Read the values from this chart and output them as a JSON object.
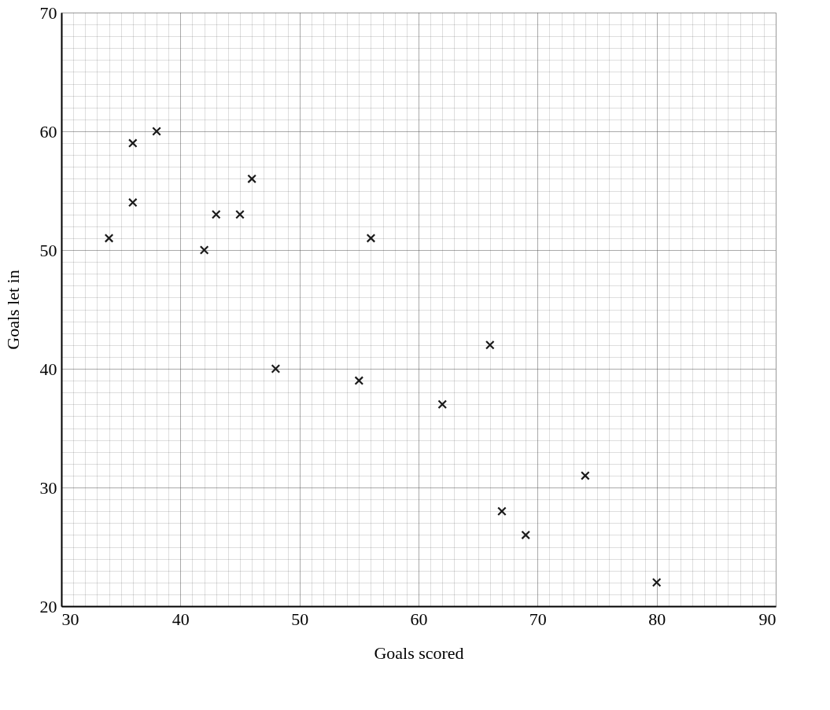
{
  "chart_data": {
    "type": "scatter",
    "xlabel": "Goals scored",
    "ylabel": "Goals let in",
    "x": [
      34,
      36,
      36,
      38,
      42,
      43,
      45,
      46,
      48,
      55,
      56,
      62,
      66,
      67,
      69,
      74,
      80
    ],
    "series": [
      {
        "color": "#1a1a1a",
        "values": [
          51,
          59,
          54,
          60,
          50,
          53,
          53,
          56,
          40,
          39,
          51,
          37,
          42,
          28,
          26,
          31,
          22
        ]
      }
    ],
    "xlim": [
      30,
      90
    ],
    "ylim": [
      20,
      70
    ],
    "xticks": [
      30,
      40,
      50,
      60,
      70,
      80,
      90
    ],
    "yticks": [
      20,
      30,
      40,
      50,
      60,
      70
    ],
    "grid": true,
    "marker": "cross",
    "legend": false
  }
}
